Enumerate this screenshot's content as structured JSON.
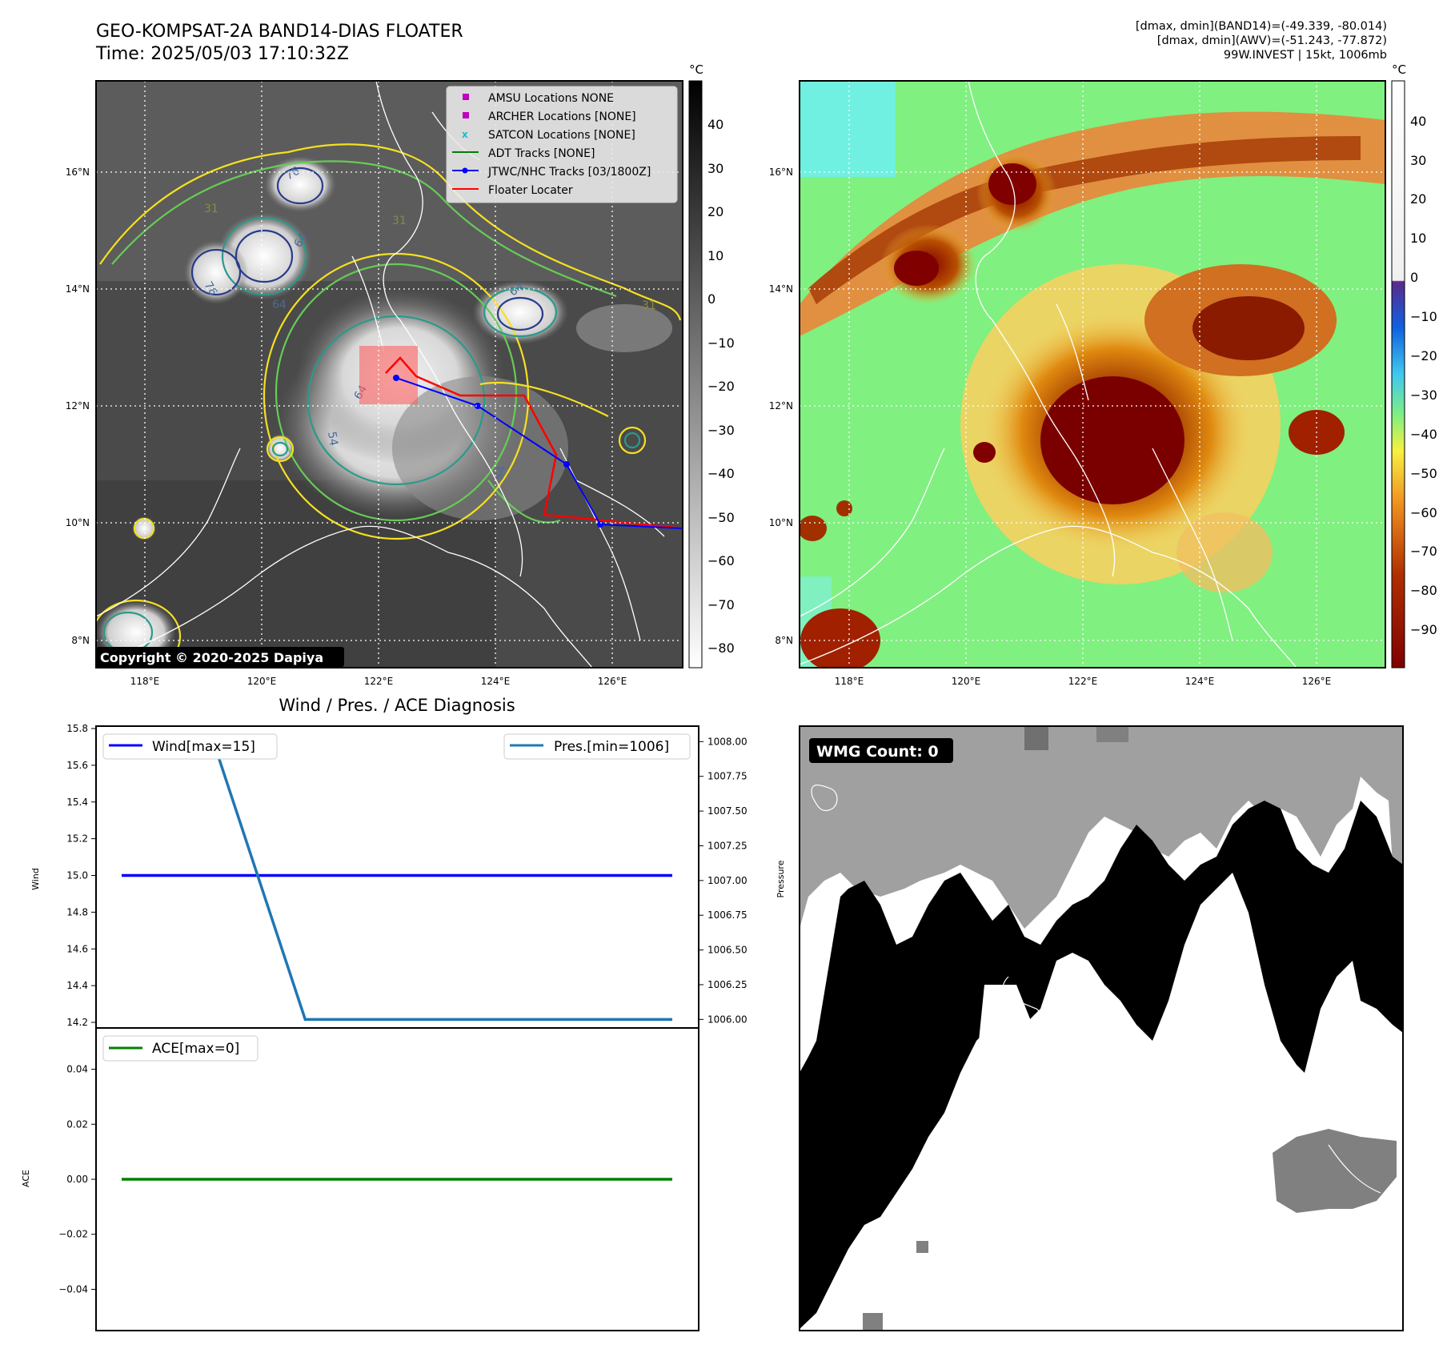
{
  "header": {
    "title_line1": "GEO-KOMPSAT-2A BAND14-DIAS FLOATER",
    "title_line2": "Time: 2025/05/03 17:10:32Z",
    "info_line1": "[dmax, dmin](BAND14)=(-49.339, -80.014)",
    "info_line2": "[dmax, dmin](AWV)=(-51.243, -77.872)",
    "info_line3": "99W.INVEST | 15kt, 1006mb"
  },
  "map_axes": {
    "lon_ticks": [
      "118°E",
      "120°E",
      "122°E",
      "124°E",
      "126°E"
    ],
    "lat_ticks": [
      "16°N",
      "14°N",
      "12°N",
      "10°N",
      "8°N"
    ]
  },
  "ir_panel": {
    "colorbar_unit": "°C",
    "colorbar_ticks": [
      "40",
      "30",
      "20",
      "10",
      "0",
      "−10",
      "−20",
      "−30",
      "−40",
      "−50",
      "−60",
      "−70",
      "−80"
    ],
    "copyright": "Copyright © 2020-2025 Dapiya",
    "contour_labels": [
      "76",
      "76",
      "64",
      "64",
      "31",
      "64",
      "31",
      "64",
      "54",
      "54",
      "31"
    ],
    "legend": [
      {
        "label": "AMSU Locations NONE",
        "color": "#bf00bf",
        "marker": "square"
      },
      {
        "label": "ARCHER Locations [NONE]",
        "color": "#bf00bf",
        "marker": "square"
      },
      {
        "label": "SATCON Locations [NONE]",
        "color": "#17becf",
        "marker": "x"
      },
      {
        "label": "ADT Tracks [NONE]",
        "color": "#008000",
        "marker": "line"
      },
      {
        "label": "JTWC/NHC Tracks [03/1800Z]",
        "color": "#0000ff",
        "marker": "line-dot"
      },
      {
        "label": "Floater Locater",
        "color": "#ff0000",
        "marker": "line"
      }
    ]
  },
  "awv_panel": {
    "colorbar_unit": "°C",
    "colorbar_ticks": [
      "40",
      "30",
      "20",
      "10",
      "0",
      "−10",
      "−20",
      "−30",
      "−40",
      "−50",
      "−60",
      "−70",
      "−80",
      "−90"
    ]
  },
  "chart_data": [
    {
      "type": "line",
      "title": "Wind / Pres. / ACE Diagnosis",
      "x": [
        0,
        1,
        2,
        3,
        4,
        5,
        6
      ],
      "ylabel": "Wind",
      "ylim": [
        14.2,
        15.8
      ],
      "yticks": [
        "15.8",
        "15.6",
        "15.4",
        "15.2",
        "15.0",
        "14.8",
        "14.6",
        "14.4",
        "14.2"
      ],
      "series": [
        {
          "name": "Wind[max=15]",
          "color": "#0000ff",
          "values": [
            15,
            15,
            15,
            15,
            15,
            15,
            15
          ]
        }
      ],
      "y2label": "Pressure",
      "y2lim": [
        1005.95,
        1008.1
      ],
      "y2ticks": [
        "1008.00",
        "1007.75",
        "1007.50",
        "1007.25",
        "1007.00",
        "1006.75",
        "1006.50",
        "1006.25",
        "1006.00"
      ],
      "series2": [
        {
          "name": "Pres.[min=1006]",
          "color": "#1f77b4",
          "values": [
            1008,
            1008,
            1006,
            1006,
            1006,
            1006,
            1006
          ]
        }
      ],
      "legend": [
        "top-left",
        "top-right"
      ]
    },
    {
      "type": "line",
      "x": [
        0,
        1,
        2,
        3,
        4,
        5,
        6
      ],
      "ylabel": "ACE",
      "ylim": [
        -0.055,
        0.055
      ],
      "yticks": [
        "0.04",
        "0.02",
        "0.00",
        "−0.02",
        "−0.04"
      ],
      "series": [
        {
          "name": "ACE[max=0]",
          "color": "#008000",
          "values": [
            0,
            0,
            0,
            0,
            0,
            0,
            0
          ]
        }
      ],
      "legend": "top-left"
    }
  ],
  "wmg_panel": {
    "badge": "WMG Count: 0"
  }
}
